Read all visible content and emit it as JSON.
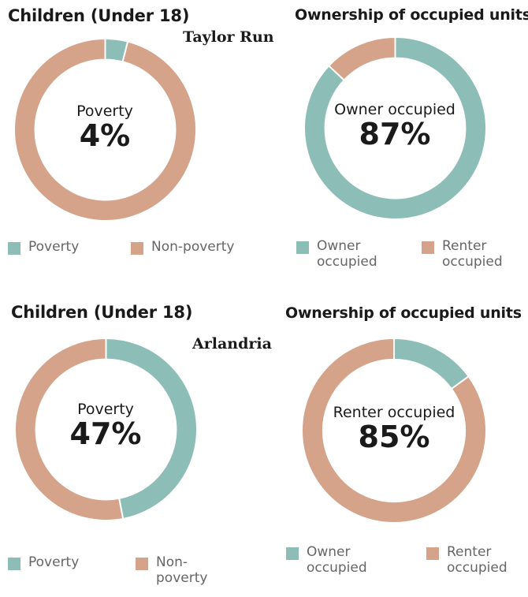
{
  "colors": {
    "teal": "#8dbdb7",
    "salmon": "#d4a38a"
  },
  "chart_data": [
    {
      "type": "pie",
      "title": "Children (Under 18)",
      "location": "Taylor Run",
      "center_label": "Poverty",
      "center_value": "4%",
      "series": [
        {
          "name": "Poverty",
          "value": 4,
          "color": "#8dbdb7"
        },
        {
          "name": "Non-poverty",
          "value": 96,
          "color": "#d4a38a"
        }
      ],
      "legend": [
        "Poverty",
        "Non-poverty"
      ]
    },
    {
      "type": "pie",
      "title": "Ownership of occupied units",
      "center_label": "Owner occupied",
      "center_value": "87%",
      "series": [
        {
          "name": "Owner occupied",
          "value": 87,
          "color": "#8dbdb7"
        },
        {
          "name": "Renter occupied",
          "value": 13,
          "color": "#d4a38a"
        }
      ],
      "legend": [
        "Owner\noccupied",
        "Renter\noccupied"
      ]
    },
    {
      "type": "pie",
      "title": "Children (Under 18)",
      "location": "Arlandria",
      "center_label": "Poverty",
      "center_value": "47%",
      "series": [
        {
          "name": "Poverty",
          "value": 47,
          "color": "#8dbdb7"
        },
        {
          "name": "Non-poverty",
          "value": 53,
          "color": "#d4a38a"
        }
      ],
      "legend": [
        "Poverty",
        "Non-\npoverty"
      ]
    },
    {
      "type": "pie",
      "title": "Ownership of occupied units",
      "center_label": "Renter occupied",
      "center_value": "85%",
      "series": [
        {
          "name": "Owner occupied",
          "value": 15,
          "color": "#8dbdb7"
        },
        {
          "name": "Renter occupied",
          "value": 85,
          "color": "#d4a38a"
        }
      ],
      "legend": [
        "Owner\noccupied",
        "Renter\noccupied"
      ]
    }
  ]
}
